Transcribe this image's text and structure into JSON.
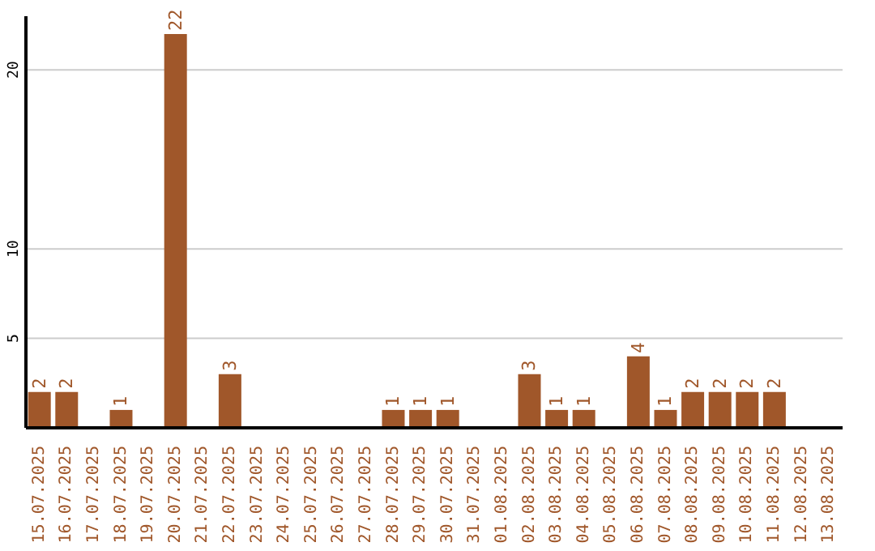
{
  "chart_data": {
    "type": "bar",
    "categories": [
      "15.07.2025",
      "16.07.2025",
      "17.07.2025",
      "18.07.2025",
      "19.07.2025",
      "20.07.2025",
      "21.07.2025",
      "22.07.2025",
      "23.07.2025",
      "24.07.2025",
      "25.07.2025",
      "26.07.2025",
      "27.07.2025",
      "28.07.2025",
      "29.07.2025",
      "30.07.2025",
      "31.07.2025",
      "01.08.2025",
      "02.08.2025",
      "03.08.2025",
      "04.08.2025",
      "05.08.2025",
      "06.08.2025",
      "07.08.2025",
      "08.08.2025",
      "09.08.2025",
      "10.08.2025",
      "11.08.2025",
      "12.08.2025",
      "13.08.2025"
    ],
    "values": [
      2,
      2,
      0,
      1,
      0,
      22,
      0,
      3,
      0,
      0,
      0,
      0,
      0,
      1,
      1,
      1,
      0,
      0,
      3,
      1,
      1,
      0,
      4,
      1,
      2,
      2,
      2,
      2,
      0,
      0
    ],
    "value_labels": [
      "2",
      "2",
      null,
      "1",
      null,
      "22",
      null,
      "3",
      null,
      null,
      null,
      null,
      null,
      "1",
      "1",
      "1",
      null,
      null,
      "3",
      "1",
      "1",
      null,
      "4",
      "1",
      "2",
      "2",
      "2",
      "2",
      null,
      null
    ],
    "color": "#a0572a",
    "ylim": [
      0,
      23
    ],
    "yticks": [
      5,
      10,
      20
    ],
    "grid": "y"
  }
}
